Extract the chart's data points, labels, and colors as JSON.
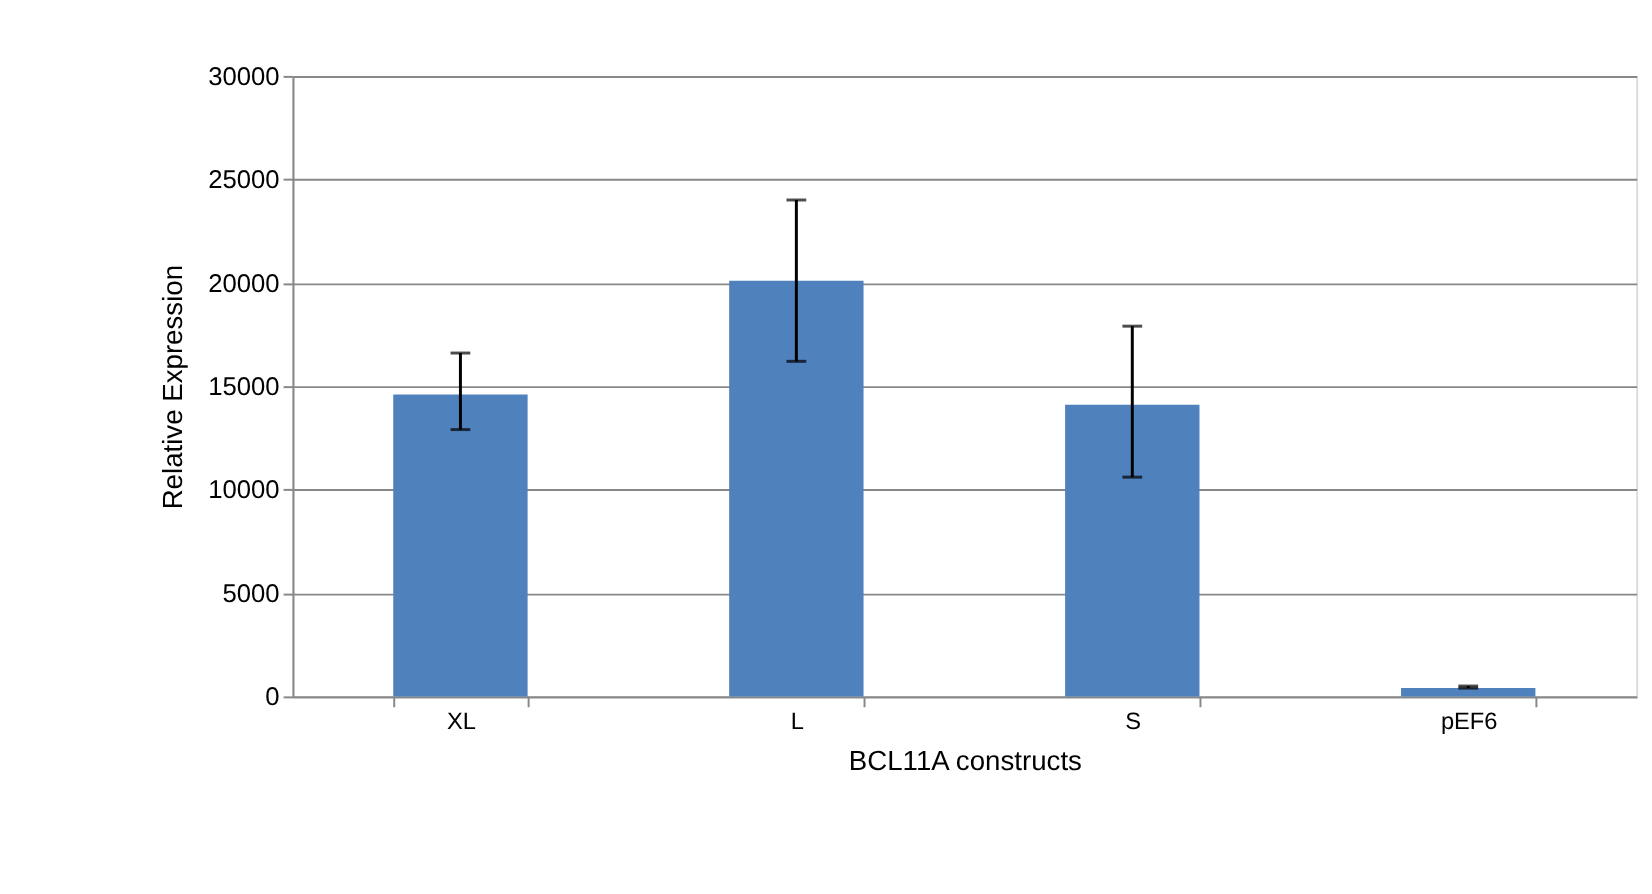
{
  "chart_data": {
    "type": "bar",
    "categories": [
      "XL",
      "L",
      "S",
      "pEF6"
    ],
    "values": [
      14600,
      20100,
      14100,
      400
    ],
    "errors": [
      [
        12900,
        16600
      ],
      [
        16200,
        24000
      ],
      [
        10600,
        17900
      ],
      [
        400,
        500
      ]
    ],
    "color": "#4f81bd",
    "xlabel": "BCL11A constructs",
    "ylabel": "Relative Expression",
    "ylim": [
      0,
      30000
    ],
    "yticks": [
      0,
      5000,
      10000,
      15000,
      20000,
      25000,
      30000
    ],
    "grid": "y"
  }
}
